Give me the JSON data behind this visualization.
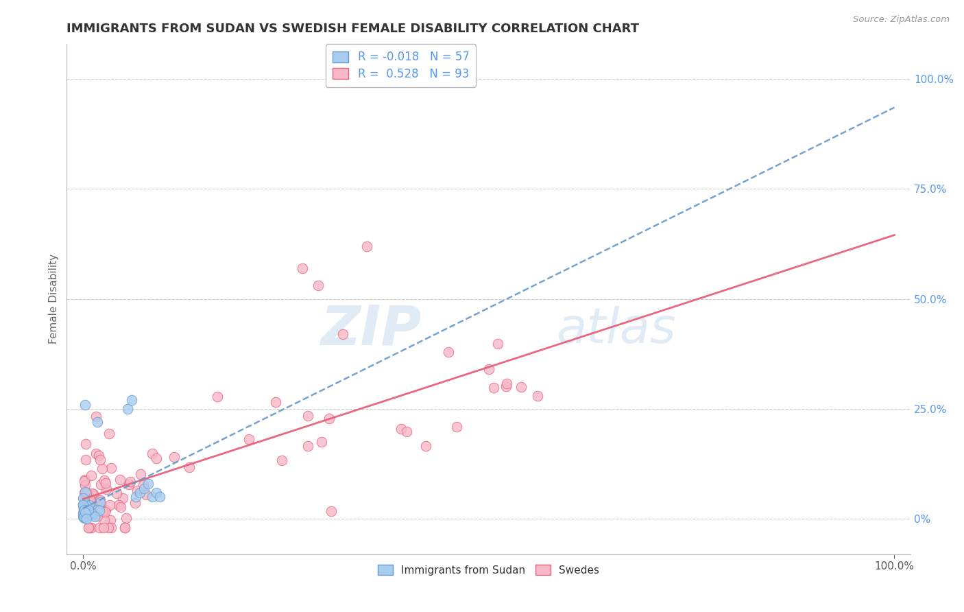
{
  "title": "IMMIGRANTS FROM SUDAN VS SWEDISH FEMALE DISABILITY CORRELATION CHART",
  "source_text": "Source: ZipAtlas.com",
  "ylabel": "Female Disability",
  "legend_labels": [
    "Immigrants from Sudan",
    "Swedes"
  ],
  "blue_R": -0.018,
  "blue_N": 57,
  "pink_R": 0.528,
  "pink_N": 93,
  "blue_color": "#A8CDEF",
  "pink_color": "#F7B8C8",
  "blue_edge": "#6699CC",
  "pink_edge": "#E8607A",
  "blue_line_color": "#6699CC",
  "pink_line_color": "#E8607A",
  "watermark_zip": "ZIP",
  "watermark_atlas": "atlas",
  "background_color": "#FFFFFF",
  "grid_color": "#CCCCCC",
  "title_color": "#333333",
  "legend_R_color": "#5599EE",
  "right_axis_color": "#5599EE"
}
